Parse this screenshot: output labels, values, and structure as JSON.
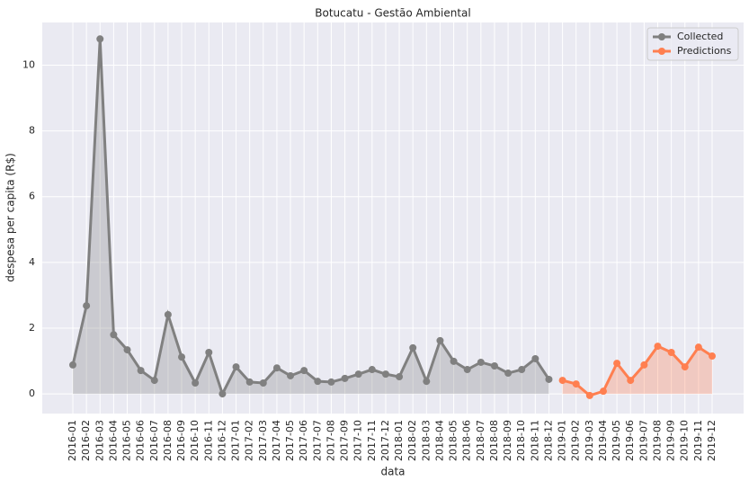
{
  "chart_data": {
    "type": "line",
    "title": "Botucatu - Gestão Ambiental",
    "xlabel": "data",
    "ylabel": "despesa per capita (R$)",
    "categories": [
      "2016-01",
      "2016-02",
      "2016-03",
      "2016-04",
      "2016-05",
      "2016-06",
      "2016-07",
      "2016-08",
      "2016-09",
      "2016-10",
      "2016-11",
      "2016-12",
      "2017-01",
      "2017-02",
      "2017-03",
      "2017-04",
      "2017-05",
      "2017-06",
      "2017-07",
      "2017-08",
      "2017-09",
      "2017-10",
      "2017-11",
      "2017-12",
      "2018-01",
      "2018-02",
      "2018-03",
      "2018-04",
      "2018-05",
      "2018-06",
      "2018-07",
      "2018-08",
      "2018-09",
      "2018-10",
      "2018-11",
      "2018-12",
      "2019-01",
      "2019-02",
      "2019-03",
      "2019-04",
      "2019-05",
      "2019-06",
      "2019-07",
      "2019-08",
      "2019-09",
      "2019-10",
      "2019-11",
      "2019-12"
    ],
    "series": [
      {
        "name": "Collected",
        "color": "#808080",
        "values": [
          0.88,
          2.68,
          10.8,
          1.8,
          1.34,
          0.71,
          0.41,
          2.41,
          1.12,
          0.33,
          1.26,
          0.0,
          0.82,
          0.36,
          0.33,
          0.79,
          0.55,
          0.71,
          0.38,
          0.36,
          0.47,
          0.6,
          0.74,
          0.6,
          0.52,
          1.4,
          0.38,
          1.62,
          0.99,
          0.74,
          0.96,
          0.85,
          0.63,
          0.74,
          1.07,
          0.44,
          null,
          null,
          null,
          null,
          null,
          null,
          null,
          null,
          null,
          null,
          null,
          null
        ]
      },
      {
        "name": "Predictions",
        "color": "#ff7f50",
        "values": [
          null,
          null,
          null,
          null,
          null,
          null,
          null,
          null,
          null,
          null,
          null,
          null,
          null,
          null,
          null,
          null,
          null,
          null,
          null,
          null,
          null,
          null,
          null,
          null,
          null,
          null,
          null,
          null,
          null,
          null,
          null,
          null,
          null,
          null,
          null,
          null,
          0.41,
          0.3,
          -0.05,
          0.08,
          0.93,
          0.41,
          0.88,
          1.45,
          1.26,
          0.82,
          1.42,
          1.15
        ]
      }
    ],
    "ylim": [
      -0.6,
      11.3
    ],
    "yticks": [
      0,
      2,
      4,
      6,
      8,
      10
    ],
    "grid": true,
    "legend": "upper right"
  }
}
